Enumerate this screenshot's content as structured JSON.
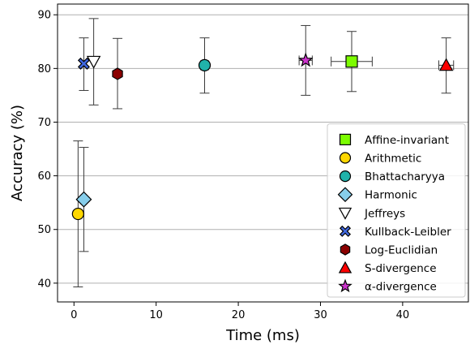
{
  "chart_data": {
    "type": "scatter",
    "xlabel": "Time (ms)",
    "ylabel": "Accuracy (%)",
    "xlim": [
      -2,
      48
    ],
    "ylim": [
      36.5,
      92
    ],
    "xticks": [
      0,
      10,
      20,
      30,
      40
    ],
    "yticks": [
      40,
      50,
      60,
      70,
      80,
      90
    ],
    "grid": "horizontal",
    "legend_position": "lower-right",
    "series": [
      {
        "name": "Affine-invariant",
        "marker": "square",
        "color": "#7cfc00",
        "x": 33.8,
        "y": 81.3,
        "yerr": [
          75.7,
          86.9
        ],
        "xerr": [
          31.3,
          36.3
        ]
      },
      {
        "name": "Arithmetic",
        "marker": "circle",
        "color": "#ffd700",
        "x": 0.5,
        "y": 52.9,
        "yerr": [
          39.3,
          66.5
        ],
        "xerr": null
      },
      {
        "name": "Bhattacharyya",
        "marker": "circle",
        "color": "#20b2aa",
        "x": 15.9,
        "y": 80.6,
        "yerr": [
          75.4,
          85.7
        ],
        "xerr": [
          15.4,
          16.4
        ]
      },
      {
        "name": "Harmonic",
        "marker": "diamond",
        "color": "#87ceeb",
        "x": 1.2,
        "y": 55.6,
        "yerr": [
          45.9,
          65.3
        ],
        "xerr": null
      },
      {
        "name": "Jeffreys",
        "marker": "triangle-down",
        "color": "#ffffff",
        "x": 2.4,
        "y": 81.3,
        "yerr": [
          73.2,
          89.3
        ],
        "xerr": null
      },
      {
        "name": "Kullback-Leibler",
        "marker": "x",
        "color": "#4169e1",
        "x": 1.2,
        "y": 80.9,
        "yerr": [
          75.9,
          85.7
        ],
        "xerr": null
      },
      {
        "name": "Log-Euclidian",
        "marker": "hexagon",
        "color": "#8b0000",
        "x": 5.3,
        "y": 79.0,
        "yerr": [
          72.5,
          85.6
        ],
        "xerr": null
      },
      {
        "name": "S-divergence",
        "marker": "triangle-up",
        "color": "#ff0000",
        "x": 45.3,
        "y": 80.6,
        "yerr": [
          75.4,
          85.7
        ],
        "xerr": [
          44.4,
          46.2
        ]
      },
      {
        "name": "α-divergence",
        "marker": "star",
        "color": "#cc33cc",
        "x": 28.2,
        "y": 81.5,
        "yerr": [
          75.0,
          88.0
        ],
        "xerr": [
          27.4,
          29.0
        ]
      }
    ]
  }
}
